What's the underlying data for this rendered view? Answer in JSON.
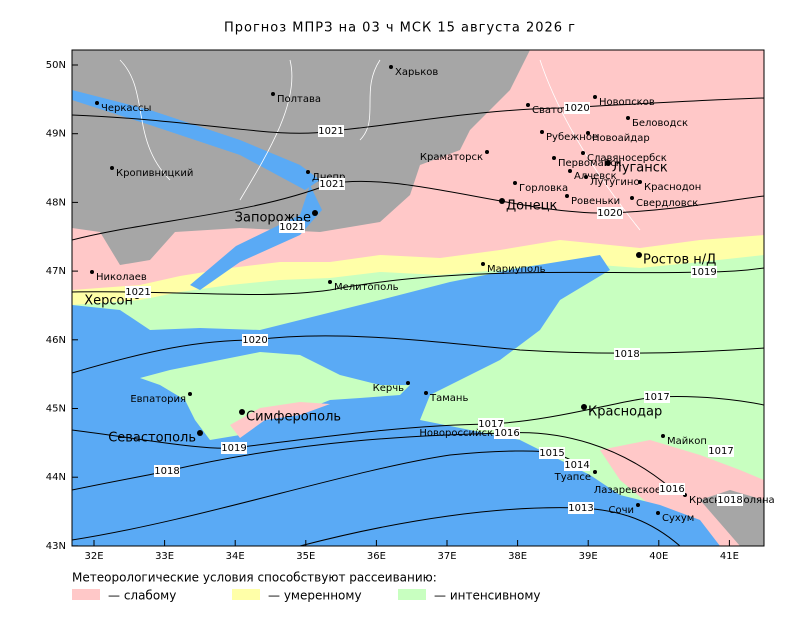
{
  "title": "Прогноз МПРЗ на 03 ч МСК 15 августа 2026 г",
  "axes": {
    "lat_ticks": [
      {
        "value": 50,
        "label": "50N"
      },
      {
        "value": 49,
        "label": "49N"
      },
      {
        "value": 48,
        "label": "48N"
      },
      {
        "value": 47,
        "label": "47N"
      },
      {
        "value": 46,
        "label": "46N"
      },
      {
        "value": 45,
        "label": "45N"
      },
      {
        "value": 44,
        "label": "44N"
      },
      {
        "value": 43,
        "label": "43N"
      }
    ],
    "lon_ticks": [
      {
        "value": 32,
        "label": "32E"
      },
      {
        "value": 33,
        "label": "33E"
      },
      {
        "value": 34,
        "label": "34E"
      },
      {
        "value": 35,
        "label": "35E"
      },
      {
        "value": 36,
        "label": "36E"
      },
      {
        "value": 37,
        "label": "37E"
      },
      {
        "value": 38,
        "label": "38E"
      },
      {
        "value": 39,
        "label": "39E"
      },
      {
        "value": 40,
        "label": "40E"
      },
      {
        "value": 41,
        "label": "41E"
      }
    ]
  },
  "cities": [
    "Харьков",
    "Полтава",
    "Черкассы",
    "Кропивницкий",
    "Днепр",
    "Запорожье",
    "Николаев",
    "Херсон",
    "Мелитополь",
    "Мариуполь",
    "Донецк",
    "Горловка",
    "Краматорск",
    "Рубежное",
    "Сватово",
    "Новопсков",
    "Беловодск",
    "Новоайдар",
    "Славяносербск",
    "Первомайск",
    "Алчевск",
    "Луганск",
    "Лутугино",
    "Краснодон",
    "Ровеньки",
    "Свердловск",
    "Ростов н/Д",
    "Евпатория",
    "Симферополь",
    "Севастополь",
    "Керчь",
    "Тамань",
    "Новороссийск",
    "Краснодар",
    "Майкоп",
    "Туапсе",
    "Лазаревское",
    "Сочи",
    "Красная Поляна",
    "Сухум"
  ],
  "isobar_labels": [
    "1020",
    "1021",
    "1021",
    "1021",
    "1020",
    "1019",
    "1021",
    "1020",
    "1018",
    "1017",
    "1017",
    "1016",
    "1015",
    "1014",
    "1017",
    "1016",
    "1018",
    "1019",
    "1018",
    "1013"
  ],
  "legend": {
    "title": "Метеорологические условия способствуют рассеиванию:",
    "items": [
      {
        "label": "— слабому",
        "color": "#ffc8c8"
      },
      {
        "label": "— умеренному",
        "color": "#ffffa8"
      },
      {
        "label": "— интенсивному",
        "color": "#c8ffc0"
      }
    ]
  }
}
